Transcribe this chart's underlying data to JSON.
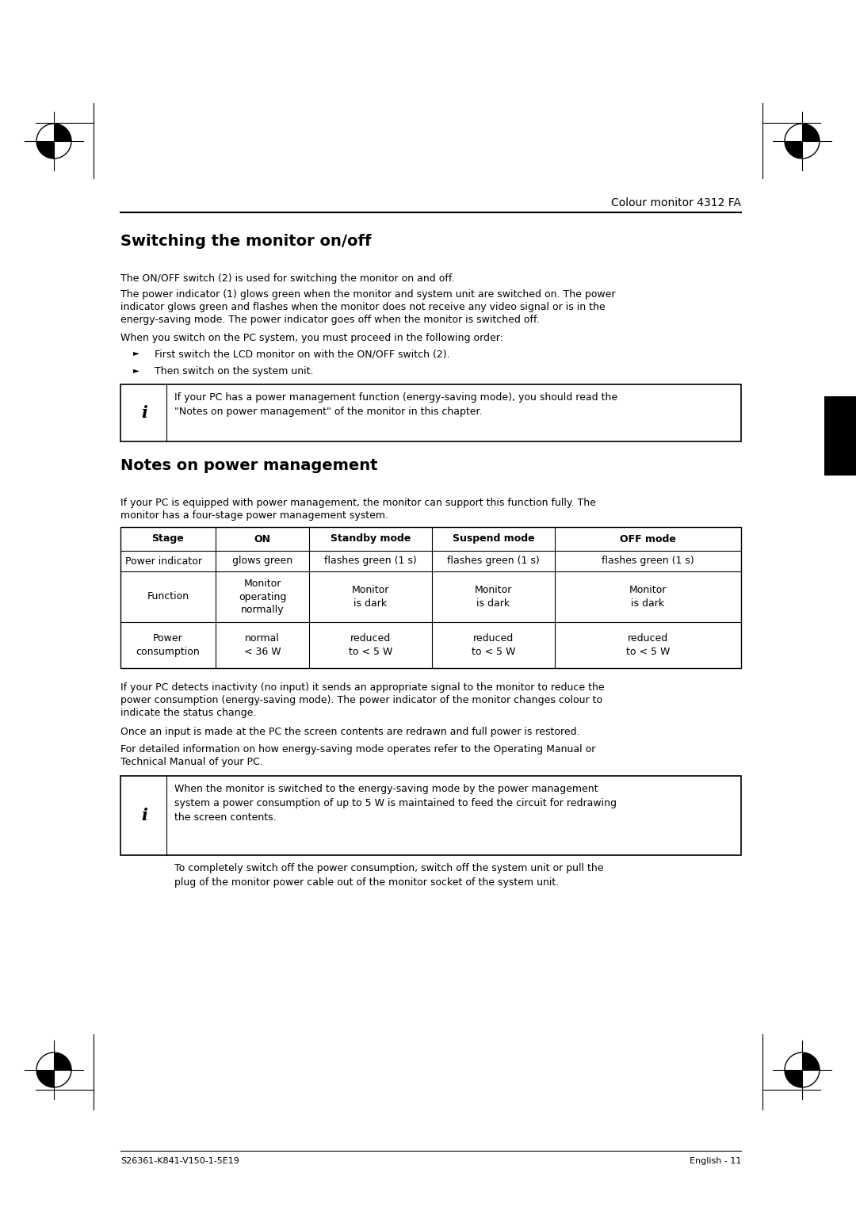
{
  "page_title": "Colour monitor 4312 FA",
  "section1_title": "Switching the monitor on/off",
  "para1": "The ON/OFF switch (2) is used for switching the monitor on and off.",
  "para2_line1": "The power indicator (1) glows green when the monitor and system unit are switched on. The power",
  "para2_line2": "indicator glows green and flashes when the monitor does not receive any video signal or is in the",
  "para2_line3": "energy-saving mode. The power indicator goes off when the monitor is switched off.",
  "para3": "When you switch on the PC system, you must proceed in the following order:",
  "bullet1": "First switch the LCD monitor on with the ON/OFF switch (2).",
  "bullet2": "Then switch on the system unit.",
  "info_box1_text": "If your PC has a power management function (energy-saving mode), you should read the\n\"Notes on power management\" of the monitor in this chapter.",
  "section2_title": "Notes on power management",
  "para4_line1": "If your PC is equipped with power management, the monitor can support this function fully. The",
  "para4_line2": "monitor has a four-stage power management system.",
  "table_headers": [
    "Stage",
    "ON",
    "Standby mode",
    "Suspend mode",
    "OFF mode"
  ],
  "table_row1": [
    "Power indicator",
    "glows green",
    "flashes green (1 s)",
    "flashes green (1 s)",
    "flashes green (1 s)"
  ],
  "table_row2": [
    "Function",
    "Monitor\noperating\nnormally",
    "Monitor\nis dark",
    "Monitor\nis dark",
    "Monitor\nis dark"
  ],
  "table_row3": [
    "Power\nconsumption",
    "normal\n< 36 W",
    "reduced\nto < 5 W",
    "reduced\nto < 5 W",
    "reduced\nto < 5 W"
  ],
  "para5_line1": "If your PC detects inactivity (no input) it sends an appropriate signal to the monitor to reduce the",
  "para5_line2": "power consumption (energy-saving mode). The power indicator of the monitor changes colour to",
  "para5_line3": "indicate the status change.",
  "para6": "Once an input is made at the PC the screen contents are redrawn and full power is restored.",
  "para7_line1": "For detailed information on how energy-saving mode operates refer to the Operating Manual or",
  "para7_line2": "Technical Manual of your PC.",
  "info_box2_text1": "When the monitor is switched to the energy-saving mode by the power management\nsystem a power consumption of up to 5 W is maintained to feed the circuit for redrawing\nthe screen contents.",
  "info_box2_text2": "To completely switch off the power consumption, switch off the system unit or pull the\nplug of the monitor power cable out of the monitor socket of the system unit.",
  "footer_left": "S26361-K841-V150-1-5E19",
  "footer_right": "English - 11"
}
